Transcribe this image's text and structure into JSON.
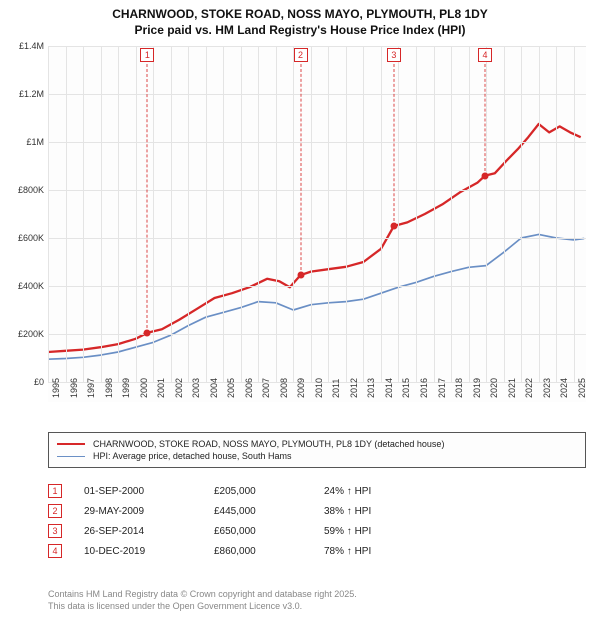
{
  "title_line1": "CHARNWOOD, STOKE ROAD, NOSS MAYO, PLYMOUTH, PL8 1DY",
  "title_line2": "Price paid vs. HM Land Registry's House Price Index (HPI)",
  "chart": {
    "type": "line",
    "background_color": "#fdfdfd",
    "grid_color": "#e4e4e4",
    "axis_font_size": 9,
    "x_min": 1995,
    "x_max": 2025.7,
    "x_ticks": [
      1995,
      1996,
      1997,
      1998,
      1999,
      2000,
      2001,
      2002,
      2003,
      2004,
      2005,
      2006,
      2007,
      2008,
      2009,
      2010,
      2011,
      2012,
      2013,
      2014,
      2015,
      2016,
      2017,
      2018,
      2019,
      2020,
      2021,
      2022,
      2023,
      2024,
      2025
    ],
    "y_min": 0,
    "y_max": 1400000,
    "y_ticks": [
      {
        "v": 0,
        "label": "£0"
      },
      {
        "v": 200000,
        "label": "£200K"
      },
      {
        "v": 400000,
        "label": "£400K"
      },
      {
        "v": 600000,
        "label": "£600K"
      },
      {
        "v": 800000,
        "label": "£800K"
      },
      {
        "v": 1000000,
        "label": "£1M"
      },
      {
        "v": 1200000,
        "label": "£1.2M"
      },
      {
        "v": 1400000,
        "label": "£1.4M"
      }
    ],
    "series": [
      {
        "name": "price_paid",
        "color": "#d62728",
        "width": 2.3,
        "points": [
          [
            1995.0,
            125000
          ],
          [
            1996.0,
            130000
          ],
          [
            1997.0,
            135000
          ],
          [
            1998.0,
            145000
          ],
          [
            1999.0,
            158000
          ],
          [
            2000.0,
            180000
          ],
          [
            2000.67,
            205000
          ],
          [
            2001.5,
            220000
          ],
          [
            2002.5,
            260000
          ],
          [
            2003.5,
            305000
          ],
          [
            2004.5,
            350000
          ],
          [
            2005.5,
            370000
          ],
          [
            2006.5,
            395000
          ],
          [
            2007.5,
            430000
          ],
          [
            2008.2,
            420000
          ],
          [
            2008.8,
            395000
          ],
          [
            2009.4,
            445000
          ],
          [
            2010.0,
            460000
          ],
          [
            2011.0,
            470000
          ],
          [
            2012.0,
            480000
          ],
          [
            2013.0,
            500000
          ],
          [
            2014.0,
            555000
          ],
          [
            2014.74,
            650000
          ],
          [
            2015.5,
            665000
          ],
          [
            2016.5,
            700000
          ],
          [
            2017.5,
            740000
          ],
          [
            2018.5,
            790000
          ],
          [
            2019.5,
            830000
          ],
          [
            2019.94,
            860000
          ],
          [
            2020.5,
            870000
          ],
          [
            2021.2,
            925000
          ],
          [
            2021.8,
            970000
          ],
          [
            2022.4,
            1020000
          ],
          [
            2023.0,
            1075000
          ],
          [
            2023.6,
            1040000
          ],
          [
            2024.2,
            1065000
          ],
          [
            2024.8,
            1040000
          ],
          [
            2025.4,
            1020000
          ]
        ]
      },
      {
        "name": "hpi",
        "color": "#6a8fc5",
        "width": 1.7,
        "points": [
          [
            1995.0,
            95000
          ],
          [
            1996.0,
            98000
          ],
          [
            1997.0,
            103000
          ],
          [
            1998.0,
            112000
          ],
          [
            1999.0,
            125000
          ],
          [
            2000.0,
            145000
          ],
          [
            2001.0,
            165000
          ],
          [
            2002.0,
            195000
          ],
          [
            2003.0,
            235000
          ],
          [
            2004.0,
            270000
          ],
          [
            2005.0,
            290000
          ],
          [
            2006.0,
            310000
          ],
          [
            2007.0,
            335000
          ],
          [
            2008.0,
            330000
          ],
          [
            2009.0,
            300000
          ],
          [
            2010.0,
            322000
          ],
          [
            2011.0,
            330000
          ],
          [
            2012.0,
            335000
          ],
          [
            2013.0,
            345000
          ],
          [
            2014.0,
            370000
          ],
          [
            2015.0,
            395000
          ],
          [
            2016.0,
            415000
          ],
          [
            2017.0,
            440000
          ],
          [
            2018.0,
            460000
          ],
          [
            2019.0,
            478000
          ],
          [
            2020.0,
            485000
          ],
          [
            2021.0,
            540000
          ],
          [
            2022.0,
            600000
          ],
          [
            2023.0,
            615000
          ],
          [
            2024.0,
            600000
          ],
          [
            2025.0,
            592000
          ],
          [
            2025.6,
            598000
          ]
        ]
      }
    ],
    "markers": [
      {
        "n": "1",
        "x": 2000.67,
        "y": 205000
      },
      {
        "n": "2",
        "x": 2009.41,
        "y": 445000
      },
      {
        "n": "3",
        "x": 2014.74,
        "y": 650000
      },
      {
        "n": "4",
        "x": 2019.94,
        "y": 860000
      }
    ]
  },
  "legend": {
    "items": [
      {
        "color": "#d62728",
        "width": 2.5,
        "label": "CHARNWOOD, STOKE ROAD, NOSS MAYO, PLYMOUTH, PL8 1DY (detached house)"
      },
      {
        "color": "#6a8fc5",
        "width": 1.7,
        "label": "HPI: Average price, detached house, South Hams"
      }
    ]
  },
  "sales": [
    {
      "n": "1",
      "date": "01-SEP-2000",
      "price": "£205,000",
      "hpi": "24% ↑ HPI"
    },
    {
      "n": "2",
      "date": "29-MAY-2009",
      "price": "£445,000",
      "hpi": "38% ↑ HPI"
    },
    {
      "n": "3",
      "date": "26-SEP-2014",
      "price": "£650,000",
      "hpi": "59% ↑ HPI"
    },
    {
      "n": "4",
      "date": "10-DEC-2019",
      "price": "£860,000",
      "hpi": "78% ↑ HPI"
    }
  ],
  "footer_line1": "Contains HM Land Registry data © Crown copyright and database right 2025.",
  "footer_line2": "This data is licensed under the Open Government Licence v3.0."
}
